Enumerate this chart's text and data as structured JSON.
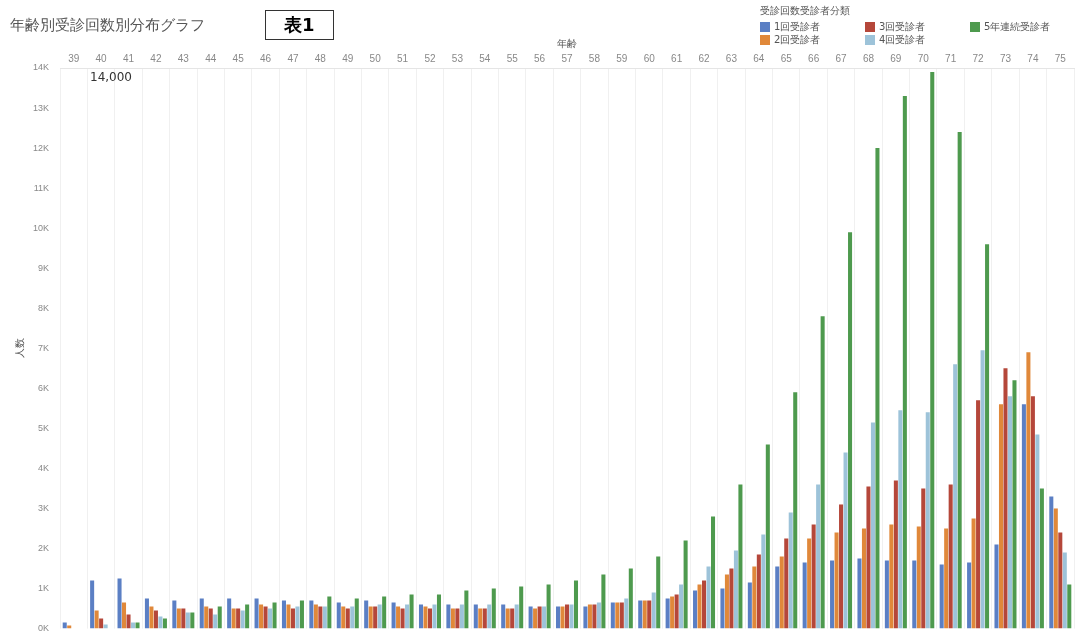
{
  "chart_data": {
    "type": "bar",
    "title": "年齢別受診回数別分布グラフ",
    "xlabel": "年齢",
    "ylabel": "人数",
    "legend_title": "受診回数受診者分類",
    "legend": "top right",
    "grid": "x",
    "annotations": [
      "表1",
      "14,000"
    ],
    "categories": [
      "39",
      "40",
      "41",
      "42",
      "43",
      "44",
      "45",
      "46",
      "47",
      "48",
      "49",
      "50",
      "51",
      "52",
      "53",
      "54",
      "55",
      "56",
      "57",
      "58",
      "59",
      "60",
      "61",
      "62",
      "63",
      "64",
      "65",
      "66",
      "67",
      "68",
      "69",
      "70",
      "71",
      "72",
      "73",
      "74",
      "75"
    ],
    "ylim": [
      0,
      14000
    ],
    "yticks": [
      {
        "value": 0,
        "label": "0K"
      },
      {
        "value": 1000,
        "label": "1K"
      },
      {
        "value": 2000,
        "label": "2K"
      },
      {
        "value": 3000,
        "label": "3K"
      },
      {
        "value": 4000,
        "label": "4K"
      },
      {
        "value": 5000,
        "label": "5K"
      },
      {
        "value": 6000,
        "label": "6K"
      },
      {
        "value": 7000,
        "label": "7K"
      },
      {
        "value": 8000,
        "label": "8K"
      },
      {
        "value": 9000,
        "label": "9K"
      },
      {
        "value": 10000,
        "label": "10K"
      },
      {
        "value": 11000,
        "label": "11K"
      },
      {
        "value": 12000,
        "label": "12K"
      },
      {
        "value": 13000,
        "label": "13K"
      },
      {
        "value": 14000,
        "label": "14K"
      }
    ],
    "series": [
      {
        "name": "1回受診者",
        "color": "#5b7fc4",
        "values": [
          150,
          1200,
          1250,
          750,
          700,
          750,
          750,
          750,
          700,
          700,
          650,
          700,
          650,
          600,
          600,
          600,
          600,
          550,
          550,
          550,
          650,
          700,
          750,
          950,
          1000,
          1150,
          1550,
          1650,
          1700,
          1750,
          1700,
          1700,
          1600,
          1650,
          2100,
          5600,
          3300
        ]
      },
      {
        "name": "2回受診者",
        "color": "#e0883a",
        "values": [
          80,
          450,
          650,
          550,
          500,
          550,
          500,
          600,
          600,
          600,
          550,
          550,
          550,
          550,
          500,
          500,
          500,
          500,
          550,
          600,
          650,
          700,
          800,
          1100,
          1350,
          1550,
          1800,
          2250,
          2400,
          2500,
          2600,
          2550,
          2500,
          2750,
          5600,
          6900,
          3000
        ]
      },
      {
        "name": "3回受診者",
        "color": "#b5473a",
        "values": [
          null,
          250,
          350,
          450,
          500,
          500,
          500,
          550,
          500,
          550,
          500,
          550,
          500,
          500,
          500,
          500,
          500,
          550,
          600,
          600,
          650,
          700,
          850,
          1200,
          1500,
          1850,
          2250,
          2600,
          3100,
          3550,
          3700,
          3500,
          3600,
          5700,
          6500,
          5800,
          2400
        ]
      },
      {
        "name": "4回受診者",
        "color": "#9dc3d9",
        "values": [
          null,
          100,
          150,
          300,
          400,
          350,
          450,
          500,
          550,
          550,
          550,
          600,
          600,
          600,
          600,
          600,
          600,
          550,
          600,
          650,
          750,
          900,
          1100,
          1550,
          1950,
          2350,
          2900,
          3600,
          4400,
          5150,
          5450,
          5400,
          6600,
          6950,
          5800,
          4850,
          1900
        ]
      },
      {
        "name": "5年連続受診者",
        "color": "#4e9a4e",
        "values": [
          null,
          null,
          150,
          250,
          400,
          550,
          600,
          650,
          700,
          800,
          750,
          800,
          850,
          850,
          950,
          1000,
          1050,
          1100,
          1200,
          1350,
          1500,
          1800,
          2200,
          2800,
          3600,
          4600,
          5900,
          7800,
          9900,
          12000,
          13300,
          13900,
          12400,
          9600,
          6200,
          3500,
          1100
        ]
      }
    ]
  }
}
